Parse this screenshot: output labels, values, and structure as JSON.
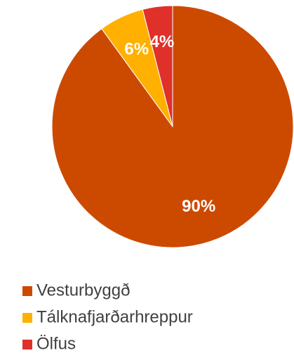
{
  "chart_data": {
    "type": "pie",
    "categories": [
      "Vesturbyggð",
      "Tálknafjarðarhreppur",
      "Ölfus"
    ],
    "values": [
      90,
      6,
      4
    ],
    "value_labels": [
      "90%",
      "6%",
      "4%"
    ],
    "colors": [
      "#cc4a00",
      "#ffb000",
      "#e0302a"
    ],
    "legend": "bottom"
  }
}
